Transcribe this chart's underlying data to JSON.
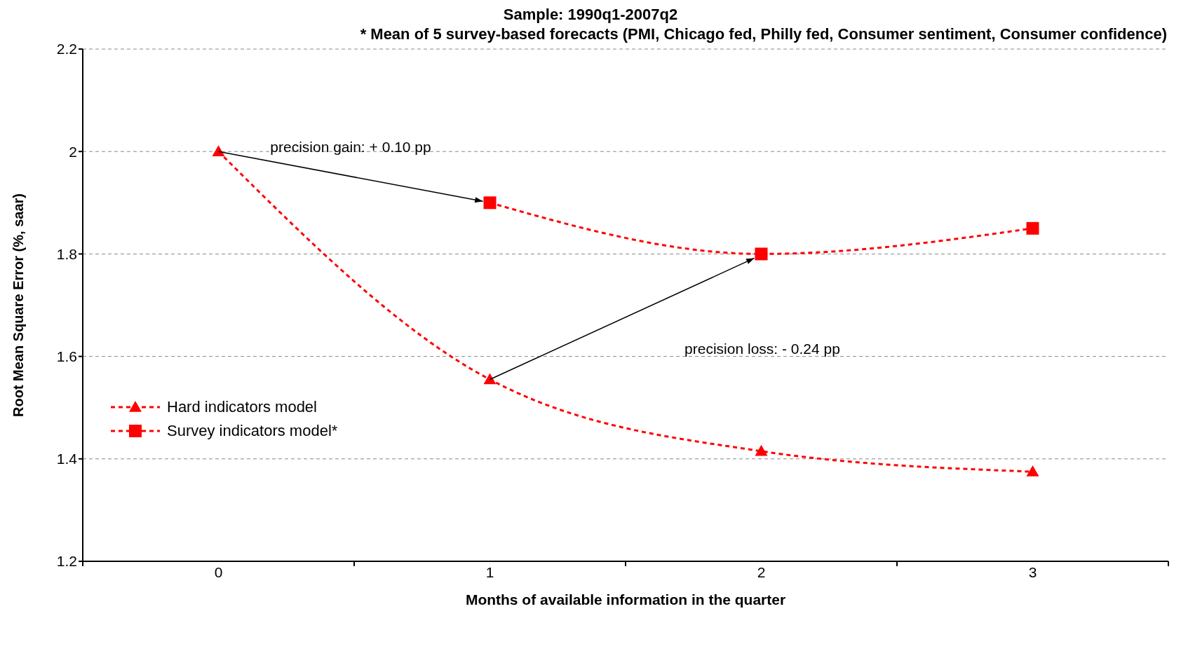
{
  "chart_data": {
    "type": "line",
    "title": "Sample: 1990q1-2007q2",
    "subtitle": "* Mean of 5 survey-based forecacts (PMI, Chicago fed, Philly fed, Consumer sentiment, Consumer confidence)",
    "xlabel": "Months of available information in the quarter",
    "ylabel": "Root Mean Square Error (%, saar)",
    "categories": [
      "0",
      "1",
      "2",
      "3"
    ],
    "series": [
      {
        "name": "Hard indicators model",
        "color": "#ff0000",
        "values": [
          2.0,
          1.555,
          1.415,
          1.375
        ],
        "marker": "triangle"
      },
      {
        "name": "Survey indicators model*",
        "color": "#ff0000",
        "values": [
          null,
          1.9,
          1.8,
          1.85
        ],
        "marker": "square"
      }
    ],
    "annotations": [
      "precision gain:  + 0.10 pp",
      "precision loss: - 0.24 pp"
    ],
    "ylim": [
      1.2,
      2.2
    ],
    "yticks": [
      1.2,
      1.4,
      1.6,
      1.8,
      2,
      2.2
    ],
    "grid": "y",
    "legend": "left",
    "line_style": "dashed"
  }
}
